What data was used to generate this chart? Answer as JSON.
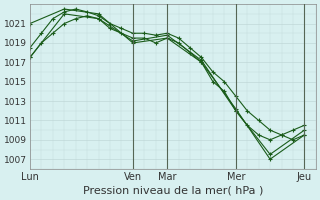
{
  "title": "Pression niveau de la mer( hPa )",
  "background_color": "#d8f0f0",
  "grid_color": "#c0d8d8",
  "line_color": "#1a5c1a",
  "ylim": [
    1006,
    1023
  ],
  "yticks": [
    1007,
    1009,
    1011,
    1013,
    1015,
    1017,
    1019,
    1021
  ],
  "x_day_labels": [
    "Lun",
    "Ven",
    "Mar",
    "Mer",
    "Jeu"
  ],
  "x_day_positions": [
    0,
    9,
    12,
    18,
    24
  ],
  "series": [
    {
      "x": [
        0,
        1,
        2,
        3,
        4,
        5,
        6,
        7,
        8,
        9,
        10,
        11,
        12,
        13,
        14,
        15,
        16,
        17,
        18,
        19,
        20,
        21,
        22,
        23,
        24
      ],
      "y": [
        1017.5,
        1019,
        1020,
        1021,
        1021.5,
        1021.8,
        1021.5,
        1020.5,
        1020,
        1019.5,
        1019.5,
        1019,
        1019.5,
        1019,
        1018,
        1017,
        1015,
        1014,
        1012,
        1010.5,
        1009.5,
        1009,
        1009.5,
        1010,
        1010.5
      ]
    },
    {
      "x": [
        0,
        1,
        2,
        3,
        4,
        5,
        6,
        7,
        8,
        9,
        10,
        11,
        12,
        13,
        14,
        15,
        16,
        17,
        18,
        19,
        20,
        21,
        22,
        23,
        24
      ],
      "y": [
        1018.5,
        1020,
        1021.5,
        1022.2,
        1022.5,
        1022.2,
        1021.8,
        1021,
        1020.5,
        1020,
        1020,
        1019.8,
        1020,
        1019.5,
        1018.5,
        1017.5,
        1016,
        1015,
        1013.5,
        1012,
        1011,
        1010,
        1009.5,
        1009,
        1009.5
      ]
    },
    {
      "x": [
        0,
        3,
        6,
        9,
        12,
        15,
        18,
        21,
        24
      ],
      "y": [
        1021,
        1022.5,
        1022,
        1019,
        1019.5,
        1017,
        1012.2,
        1007,
        1009.5
      ]
    },
    {
      "x": [
        0,
        3,
        6,
        9,
        12,
        15,
        18,
        21,
        24
      ],
      "y": [
        1017.5,
        1022,
        1021.5,
        1019.2,
        1019.8,
        1017.2,
        1012,
        1007.5,
        1010
      ]
    }
  ],
  "vlines": [
    9,
    12,
    18,
    24
  ],
  "xlabel_fontsize": 7,
  "ylabel_fontsize": 6.5,
  "title_fontsize": 8
}
